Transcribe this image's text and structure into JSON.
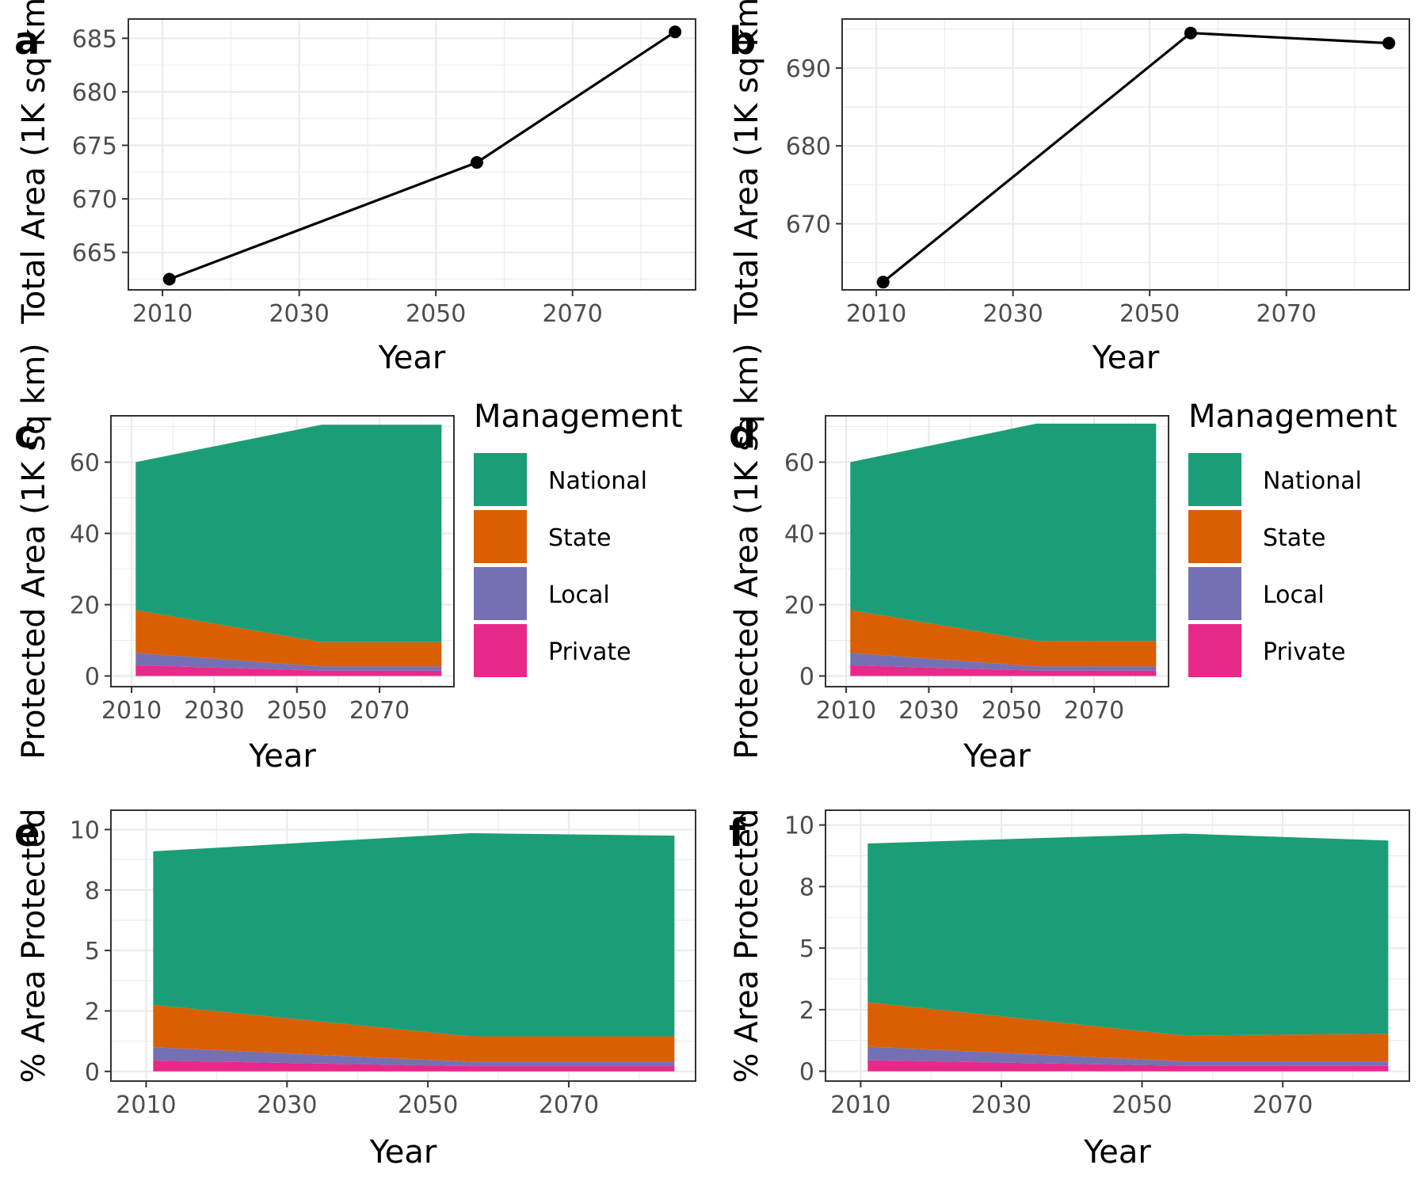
{
  "chart_data": [
    {
      "id": "a",
      "tag": "a",
      "type": "line",
      "xlabel": "Year",
      "ylabel": "Total Area (1K sq km)",
      "xlim": [
        2005,
        2088
      ],
      "ylim": [
        661.5,
        686.8
      ],
      "xticks": [
        2010,
        2030,
        2050,
        2070
      ],
      "yticks": [
        665,
        670,
        675,
        680,
        685
      ],
      "grid": true,
      "x": [
        2011,
        2056,
        2085
      ],
      "y": [
        662.5,
        673.4,
        685.6
      ]
    },
    {
      "id": "b",
      "tag": "b",
      "type": "line",
      "xlabel": "Year",
      "ylabel": "Total Area (1K sq km)",
      "xlim": [
        2005,
        2088
      ],
      "ylim": [
        661.5,
        696.3
      ],
      "xticks": [
        2010,
        2030,
        2050,
        2070
      ],
      "yticks": [
        670,
        680,
        690
      ],
      "grid": true,
      "x": [
        2011,
        2056,
        2085
      ],
      "y": [
        662.5,
        694.5,
        693.2
      ]
    },
    {
      "id": "c",
      "tag": "c",
      "type": "area",
      "xlabel": "Year",
      "ylabel": "Protected Area (1K sq km)",
      "xlim": [
        2005,
        2088
      ],
      "ylim": [
        -3,
        73
      ],
      "xticks": [
        2010,
        2030,
        2050,
        2070
      ],
      "yticks": [
        0,
        20,
        40,
        60
      ],
      "grid": true,
      "x": [
        2011,
        2056,
        2085
      ],
      "stack_order": [
        "Private",
        "Local",
        "State",
        "National"
      ],
      "series": [
        {
          "name": "National",
          "color": "#1b9e77",
          "values": [
            41.5,
            61.0,
            61.0
          ]
        },
        {
          "name": "State",
          "color": "#d95f02",
          "values": [
            12.0,
            6.8,
            6.8
          ]
        },
        {
          "name": "Local",
          "color": "#7570b3",
          "values": [
            3.5,
            1.2,
            1.2
          ]
        },
        {
          "name": "Private",
          "color": "#e7298a",
          "values": [
            3.0,
            1.5,
            1.5
          ]
        }
      ]
    },
    {
      "id": "d",
      "tag": "d",
      "type": "area",
      "xlabel": "Year",
      "ylabel": "Protected Area (1K sq km)",
      "xlim": [
        2005,
        2088
      ],
      "ylim": [
        -3,
        73
      ],
      "xticks": [
        2010,
        2030,
        2050,
        2070
      ],
      "yticks": [
        0,
        20,
        40,
        60
      ],
      "grid": true,
      "x": [
        2011,
        2056,
        2085
      ],
      "stack_order": [
        "Private",
        "Local",
        "State",
        "National"
      ],
      "series": [
        {
          "name": "National",
          "color": "#1b9e77",
          "values": [
            41.5,
            61.0,
            61.0
          ]
        },
        {
          "name": "State",
          "color": "#d95f02",
          "values": [
            12.0,
            7.1,
            7.1
          ]
        },
        {
          "name": "Local",
          "color": "#7570b3",
          "values": [
            3.5,
            1.2,
            1.2
          ]
        },
        {
          "name": "Private",
          "color": "#e7298a",
          "values": [
            3.0,
            1.5,
            1.5
          ]
        }
      ]
    },
    {
      "id": "e",
      "tag": "e",
      "type": "area",
      "xlabel": "Year",
      "ylabel": "% Area Protected",
      "xlim": [
        2005,
        2088
      ],
      "ylim": [
        -0.4,
        10.8
      ],
      "xticks": [
        2010,
        2030,
        2050,
        2070
      ],
      "yticks": [
        0,
        2,
        4,
        6,
        8,
        10
      ],
      "ytick_labels": [
        "0",
        "2",
        "5",
        "8",
        "10"
      ],
      "ytick_label_values": [
        0,
        2.5,
        5,
        7.5,
        10
      ],
      "grid": true,
      "x": [
        2011,
        2056,
        2085
      ],
      "stack_order": [
        "Private",
        "Local",
        "State",
        "National"
      ],
      "series": [
        {
          "name": "National",
          "color": "#1b9e77",
          "values": [
            6.35,
            8.4,
            8.3
          ]
        },
        {
          "name": "State",
          "color": "#d95f02",
          "values": [
            1.75,
            1.05,
            1.05
          ]
        },
        {
          "name": "Local",
          "color": "#7570b3",
          "values": [
            0.55,
            0.18,
            0.18
          ]
        },
        {
          "name": "Private",
          "color": "#e7298a",
          "values": [
            0.45,
            0.22,
            0.22
          ]
        }
      ]
    },
    {
      "id": "f",
      "tag": "f",
      "type": "area",
      "xlabel": "Year",
      "ylabel": "% Area Protected",
      "xlim": [
        2005,
        2088
      ],
      "ylim": [
        -0.4,
        10.6
      ],
      "xticks": [
        2010,
        2030,
        2050,
        2070
      ],
      "yticks": [
        0,
        2,
        4,
        6,
        8,
        10
      ],
      "ytick_labels": [
        "0",
        "2",
        "5",
        "8",
        "10"
      ],
      "ytick_label_values": [
        0,
        2.5,
        5,
        7.5,
        10
      ],
      "grid": true,
      "x": [
        2011,
        2056,
        2085
      ],
      "stack_order": [
        "Private",
        "Local",
        "State",
        "National"
      ],
      "series": [
        {
          "name": "National",
          "color": "#1b9e77",
          "values": [
            6.45,
            8.2,
            7.85
          ]
        },
        {
          "name": "State",
          "color": "#d95f02",
          "values": [
            1.8,
            1.05,
            1.12
          ]
        },
        {
          "name": "Local",
          "color": "#7570b3",
          "values": [
            0.55,
            0.18,
            0.18
          ]
        },
        {
          "name": "Private",
          "color": "#e7298a",
          "values": [
            0.45,
            0.22,
            0.22
          ]
        }
      ]
    }
  ],
  "legend": {
    "title": "Management",
    "items": [
      {
        "label": "National",
        "color": "#1b9e77"
      },
      {
        "label": "State",
        "color": "#d95f02"
      },
      {
        "label": "Local",
        "color": "#7570b3"
      },
      {
        "label": "Private",
        "color": "#e7298a"
      }
    ]
  }
}
